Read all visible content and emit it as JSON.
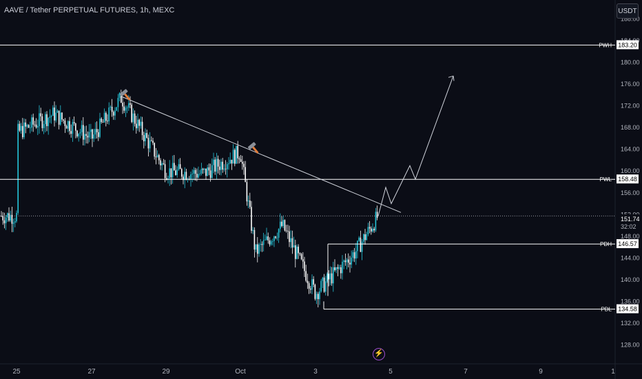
{
  "title": "AAVE / Tether PERPETUAL FUTURES, 1h, MEXC",
  "currency_button": "USDT",
  "y_axis": {
    "min": 124.5,
    "max": 191.5,
    "ticks": [
      "188.00",
      "184.00",
      "180.00",
      "176.00",
      "172.00",
      "168.00",
      "164.00",
      "160.00",
      "156.00",
      "152.00",
      "148.00",
      "144.00",
      "140.00",
      "136.00",
      "132.00",
      "128.00"
    ]
  },
  "x_axis": {
    "ticks": [
      "25",
      "27",
      "29",
      "Oct",
      "3",
      "5",
      "7",
      "9",
      "1"
    ]
  },
  "levels": [
    {
      "name": "PWH",
      "price": 183.2,
      "value": "183.20",
      "from": "25"
    },
    {
      "name": "PWL",
      "price": 158.48,
      "value": "158.48",
      "from": "25"
    },
    {
      "name": "PDH",
      "price": 146.57,
      "value": "146.57",
      "from": "3"
    },
    {
      "name": "PDL",
      "price": 134.58,
      "value": "134.58",
      "from": "3"
    }
  ],
  "last_price": {
    "value": "151.74",
    "countdown": "32:02",
    "price": 151.74
  },
  "colors": {
    "background": "#0b0d16",
    "up": "#26c6da",
    "down": "#ffffff",
    "axis_text": "#b2b5be",
    "level": "#ffffff"
  },
  "icons": [
    "hammer-icon",
    "hammer-icon",
    "lightning-icon"
  ],
  "chart_data": {
    "type": "candlestick",
    "x_labels": [
      "25",
      "27",
      "29",
      "Oct",
      "3",
      "5",
      "7",
      "9",
      "1"
    ],
    "y_range": [
      124.5,
      191.5
    ],
    "close_path": [
      [
        "25",
        167.0
      ],
      [
        "26",
        170.5
      ],
      [
        "27",
        166.0
      ],
      [
        "28",
        173.5
      ],
      [
        "29",
        160.0
      ],
      [
        "30",
        159.5
      ],
      [
        "Oct",
        163.5
      ],
      [
        "1",
        145.0
      ],
      [
        "2",
        150.0
      ],
      [
        "3",
        137.5
      ],
      [
        "4",
        145.0
      ],
      [
        "4.5",
        151.74
      ]
    ],
    "trendline": [
      [
        173.8,
        "28"
      ],
      [
        152.5,
        "5"
      ]
    ],
    "projection": [
      151.74,
      157.0,
      154.0,
      161.0,
      158.5,
      177.5
    ]
  }
}
